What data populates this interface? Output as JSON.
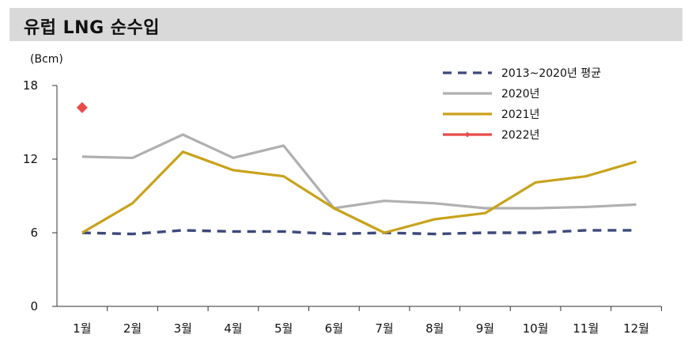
{
  "title": "유럽 LNG 순수입",
  "chart_data": {
    "type": "line",
    "ylabel": "(Bcm)",
    "ylim": [
      0,
      18
    ],
    "yticks": [
      0,
      6,
      12,
      18
    ],
    "categories": [
      "1월",
      "2월",
      "3월",
      "4월",
      "5월",
      "6월",
      "7월",
      "8월",
      "9월",
      "10월",
      "11월",
      "12월"
    ],
    "legend_position": "top-right",
    "series": [
      {
        "name": "2013~2020년  평균",
        "color": "#3b4a7a",
        "dash": true,
        "values": [
          6.0,
          5.9,
          6.2,
          6.1,
          6.1,
          5.9,
          6.0,
          5.9,
          6.0,
          6.0,
          6.2,
          6.2
        ]
      },
      {
        "name": "2020년",
        "color": "#b0b0b0",
        "values": [
          12.2,
          12.1,
          14.0,
          12.1,
          13.1,
          8.0,
          8.6,
          8.4,
          8.0,
          8.0,
          8.1,
          8.3
        ]
      },
      {
        "name": "2021년",
        "color": "#c9a21b",
        "values": [
          6.0,
          8.4,
          12.6,
          11.1,
          10.6,
          8.0,
          6.0,
          7.1,
          7.6,
          10.1,
          10.6,
          11.8
        ]
      },
      {
        "name": "2022년",
        "color": "#e84b4b",
        "marker": "diamond",
        "values": [
          16.2,
          null,
          null,
          null,
          null,
          null,
          null,
          null,
          null,
          null,
          null,
          null
        ]
      }
    ]
  }
}
